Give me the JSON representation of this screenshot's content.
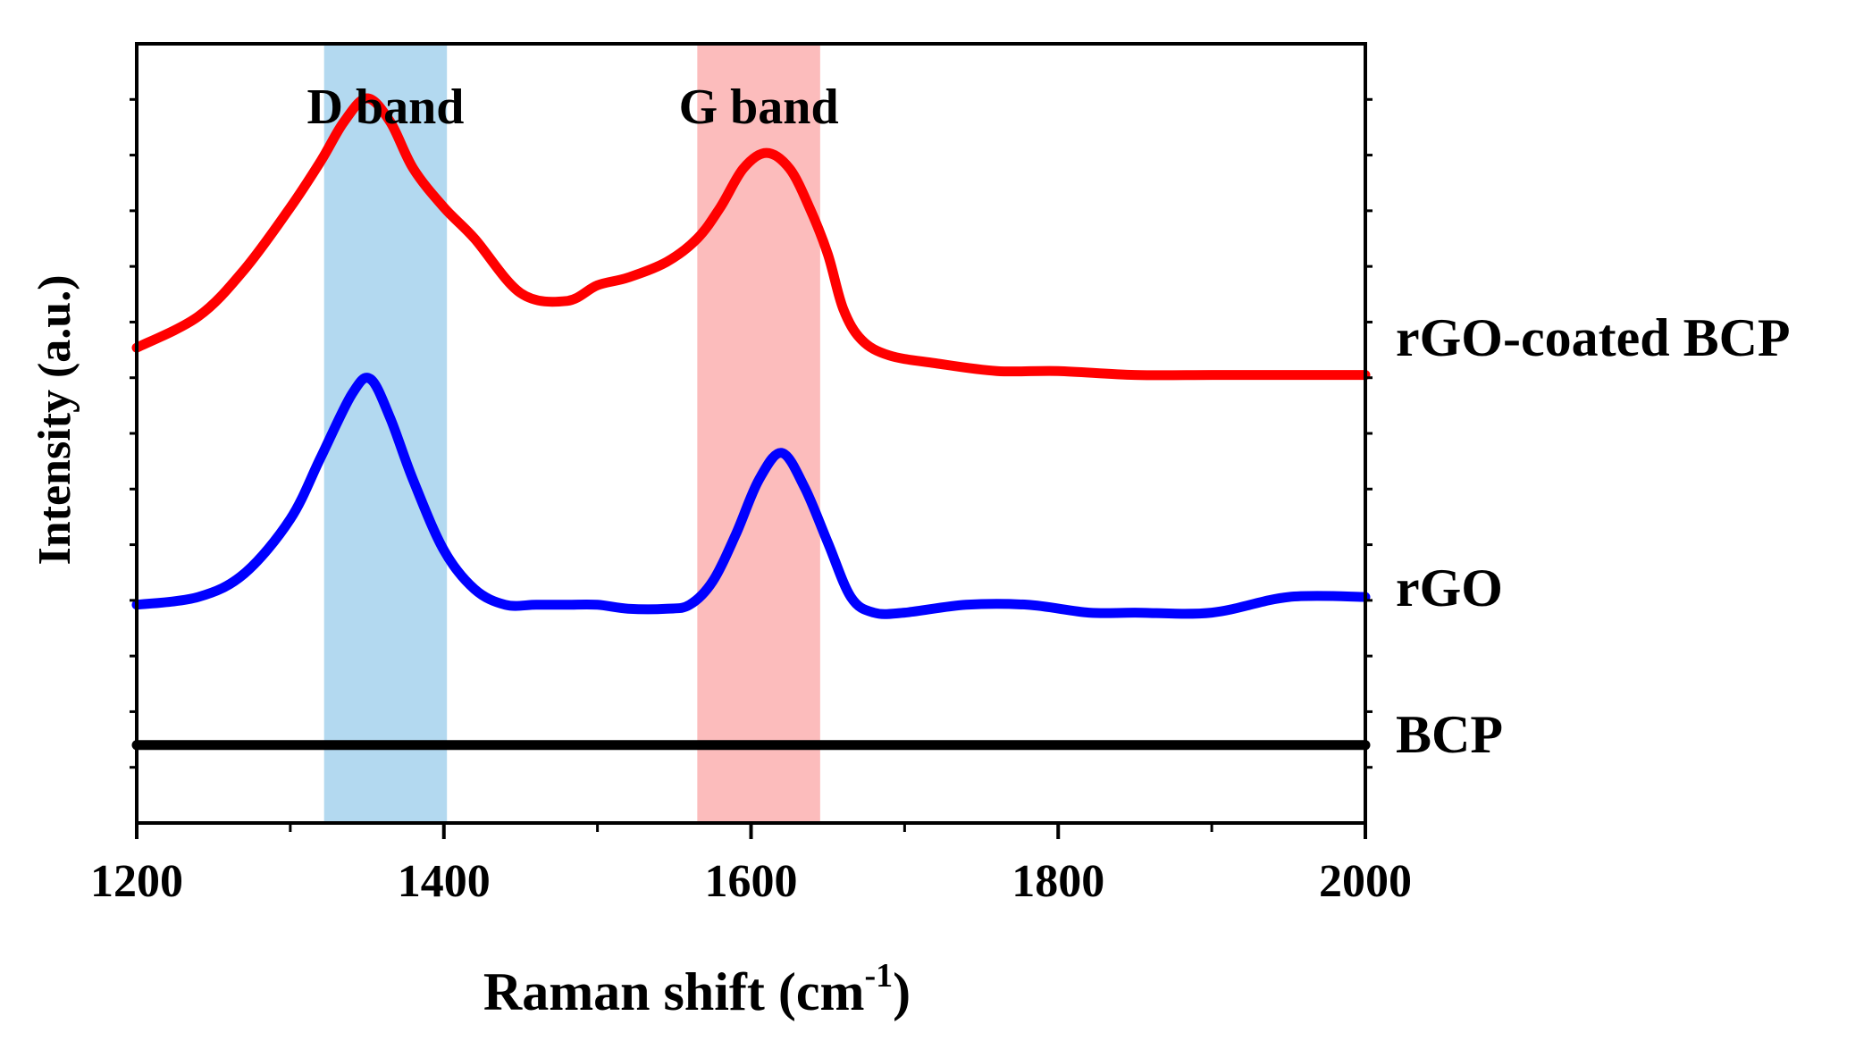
{
  "chart_data": {
    "type": "line",
    "title": "",
    "xlabel": "Raman shift (cm",
    "xlabel_superscript": "-1",
    "xlabel_close": ")",
    "ylabel": "Intensity (a.u.)",
    "xlim": [
      1200,
      2000
    ],
    "ylim": [
      0,
      100
    ],
    "x_ticks": [
      1200,
      1400,
      1600,
      1800,
      2000
    ],
    "x_minor_step": 100,
    "y_tick_count": 14,
    "grid": false,
    "shaded_bands": [
      {
        "label": "D band",
        "x_range": [
          1322,
          1402
        ],
        "color": "#b3d9f0"
      },
      {
        "label": "G band",
        "x_range": [
          1565,
          1645
        ],
        "color": "#fcbcbc"
      }
    ],
    "series": [
      {
        "name": "rGO-coated BCP",
        "color": "#ff0000",
        "overlap_color": "#c8203c",
        "x": [
          1200,
          1240,
          1270,
          1300,
          1320,
          1335,
          1350,
          1365,
          1380,
          1400,
          1420,
          1450,
          1480,
          1500,
          1520,
          1545,
          1565,
          1580,
          1595,
          1610,
          1625,
          1638,
          1650,
          1660,
          1672,
          1690,
          1720,
          1760,
          1800,
          1850,
          1900,
          1950,
          2000
        ],
        "values": [
          61,
          65,
          71,
          79,
          85,
          90,
          93,
          90,
          84,
          79,
          75,
          68,
          67,
          69,
          70,
          72,
          75,
          79,
          84,
          86,
          84,
          79,
          73,
          66,
          62,
          60,
          59,
          58,
          58,
          57.5,
          57.5,
          57.5,
          57.5
        ]
      },
      {
        "name": "rGO",
        "color": "#0000ff",
        "overlap_color": "#5014b4",
        "x": [
          1200,
          1240,
          1270,
          1300,
          1320,
          1340,
          1352,
          1365,
          1380,
          1400,
          1420,
          1440,
          1460,
          1480,
          1500,
          1520,
          1545,
          1560,
          1575,
          1590,
          1605,
          1620,
          1635,
          1650,
          1665,
          1680,
          1700,
          1740,
          1780,
          1820,
          1850,
          1900,
          1950,
          2000
        ],
        "values": [
          28,
          29,
          32,
          39,
          47,
          55,
          57,
          52,
          44,
          35,
          30,
          28,
          28,
          28,
          28,
          27.5,
          27.5,
          28,
          31,
          37,
          44,
          47.5,
          43,
          36,
          29,
          27,
          27,
          28,
          28,
          27,
          27,
          27,
          29,
          29
        ]
      },
      {
        "name": "BCP",
        "color": "#000000",
        "overlap_color": "#000000",
        "x": [
          1200,
          2000
        ],
        "values": [
          10,
          10
        ]
      }
    ]
  }
}
